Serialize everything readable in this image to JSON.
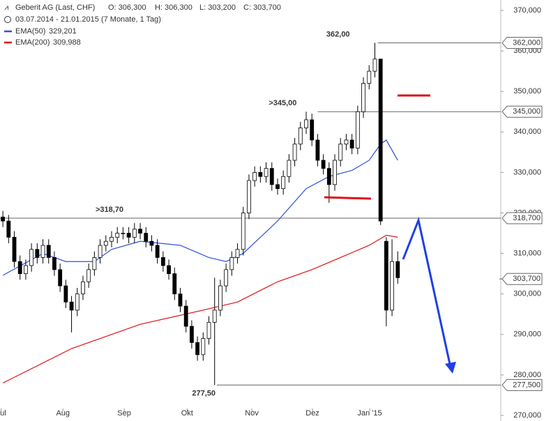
{
  "chart_data": {
    "type": "candlestick",
    "title": "Geberit AG (Last, CHF)",
    "quote": {
      "open": "O: 306,300",
      "high": "H: 306,300",
      "low": "L: 303,200",
      "close": "C: 303,700"
    },
    "subtitle": "03.07.2014 - 21.01.2015 (7 Monate, 1 Tag)",
    "up_color": "#ffffff",
    "down_color": "#000000",
    "candles": [
      [
        319,
        320.5,
        316.5,
        318
      ],
      [
        318,
        319.5,
        312.5,
        314
      ],
      [
        314,
        315.5,
        306.5,
        308
      ],
      [
        308,
        309.5,
        303.5,
        305
      ],
      [
        305,
        308.5,
        303.5,
        307
      ],
      [
        307,
        312.5,
        305.5,
        311
      ],
      [
        311,
        312.5,
        307.5,
        309
      ],
      [
        309,
        313.5,
        307.5,
        312
      ],
      [
        312,
        313.5,
        307.5,
        309
      ],
      [
        309,
        310.5,
        304.5,
        306
      ],
      [
        306,
        307.5,
        300.5,
        302
      ],
      [
        302,
        303.5,
        296.5,
        298
      ],
      [
        298,
        299.5,
        290.5,
        296
      ],
      [
        296,
        301.5,
        294.5,
        300
      ],
      [
        300,
        304.5,
        298.5,
        303
      ],
      [
        303,
        307.5,
        301.5,
        306
      ],
      [
        306,
        310.5,
        304.5,
        309
      ],
      [
        309,
        313.5,
        307.5,
        312
      ],
      [
        312,
        314.5,
        310.5,
        313
      ],
      [
        313,
        315.5,
        311.5,
        314
      ],
      [
        314,
        316.5,
        312.5,
        315
      ],
      [
        315,
        316.5,
        313.5,
        315
      ],
      [
        315,
        316.5,
        312.5,
        314
      ],
      [
        314,
        317.5,
        312.5,
        316
      ],
      [
        316,
        317.5,
        313.5,
        315
      ],
      [
        315,
        316.5,
        311.5,
        313
      ],
      [
        313,
        314.5,
        310.5,
        312
      ],
      [
        312,
        313.5,
        307.5,
        309
      ],
      [
        309,
        310.5,
        305.5,
        307
      ],
      [
        307,
        308.5,
        303.5,
        305
      ],
      [
        305,
        306.5,
        298.5,
        300
      ],
      [
        300,
        301.5,
        295.5,
        297
      ],
      [
        297,
        298.5,
        290.5,
        292
      ],
      [
        292,
        293.5,
        286.5,
        288
      ],
      [
        288,
        289.5,
        283.5,
        285
      ],
      [
        285,
        290.5,
        283.5,
        289
      ],
      [
        289,
        294.5,
        287.5,
        293
      ],
      [
        293,
        304,
        277.5,
        296
      ],
      [
        296,
        303.5,
        294.5,
        302
      ],
      [
        302,
        307.5,
        300.5,
        306
      ],
      [
        306,
        310.5,
        304.5,
        309
      ],
      [
        309,
        312.5,
        307.5,
        311
      ],
      [
        311,
        321.5,
        309.5,
        320
      ],
      [
        320,
        329.5,
        318.5,
        328
      ],
      [
        328,
        331.5,
        326.5,
        330
      ],
      [
        330,
        331.5,
        327.5,
        329
      ],
      [
        329,
        332.5,
        327.5,
        331
      ],
      [
        331,
        332.5,
        325.5,
        327
      ],
      [
        327,
        328.5,
        324.5,
        326
      ],
      [
        326,
        330.5,
        324.5,
        329
      ],
      [
        329,
        334.5,
        327.5,
        333
      ],
      [
        333,
        338.5,
        331.5,
        337
      ],
      [
        337,
        342.5,
        335.5,
        341
      ],
      [
        341,
        345,
        339.5,
        343
      ],
      [
        343,
        344.5,
        336.5,
        338
      ],
      [
        338,
        339.5,
        331.5,
        333
      ],
      [
        333,
        334.5,
        329.5,
        331
      ],
      [
        331,
        332.5,
        322.5,
        327
      ],
      [
        327,
        334.5,
        325.5,
        333
      ],
      [
        333,
        338.5,
        331.5,
        337
      ],
      [
        337,
        339.5,
        335.5,
        338
      ],
      [
        338,
        339.5,
        334.5,
        336
      ],
      [
        336,
        346.5,
        334.5,
        345
      ],
      [
        345,
        353.5,
        343.5,
        352
      ],
      [
        352,
        356.5,
        350.5,
        355
      ],
      [
        355,
        362,
        353.5,
        358
      ],
      [
        358,
        358,
        317,
        318
      ],
      [
        313,
        314,
        292,
        296
      ],
      [
        296,
        313.5,
        294.5,
        308
      ],
      [
        308,
        310.5,
        302.5,
        304
      ]
    ],
    "series": [
      {
        "name": "EMA(50)",
        "last": "329,201",
        "color": "#2b4fe0",
        "x": [
          0,
          7,
          11,
          16,
          19,
          24,
          31,
          36,
          39,
          42,
          48,
          53,
          57,
          61,
          64,
          66,
          67,
          69
        ],
        "values": [
          304.6,
          310,
          308,
          308,
          311,
          313,
          312,
          309,
          308,
          310,
          318,
          326,
          329,
          330.5,
          333,
          337,
          338,
          333
        ]
      },
      {
        "name": "EMA(200)",
        "last": "309,988",
        "color": "#e01010",
        "x": [
          0,
          12,
          24,
          35,
          41,
          48,
          54,
          59,
          64,
          67,
          69
        ],
        "values": [
          278,
          286.5,
          292.5,
          296,
          298,
          303,
          306,
          309,
          312,
          314.5,
          314
        ]
      }
    ],
    "xlim": [
      -0.5,
      87
    ],
    "xticks": [
      {
        "value": -0.3,
        "label": "Jul"
      },
      {
        "value": 10.5,
        "label": "Aug"
      },
      {
        "value": 21.2,
        "label": "Sep"
      },
      {
        "value": 32.2,
        "label": "Okt"
      },
      {
        "value": 43.5,
        "label": "Nov"
      },
      {
        "value": 54.1,
        "label": "Dez"
      },
      {
        "value": 64.1,
        "label": "Jan '15"
      }
    ],
    "ylim": [
      270,
      370
    ],
    "yticks": [
      {
        "value": 270,
        "label": "270,000"
      },
      {
        "value": 280,
        "label": "280,000"
      },
      {
        "value": 290,
        "label": "290,000"
      },
      {
        "value": 300,
        "label": "300,000"
      },
      {
        "value": 310,
        "label": "310,000"
      },
      {
        "value": 320,
        "label": "320,000"
      },
      {
        "value": 330,
        "label": "330,000"
      },
      {
        "value": 340,
        "label": "340,000"
      },
      {
        "value": 350,
        "label": "350,000"
      },
      {
        "value": 360,
        "label": "360,000"
      },
      {
        "value": 370,
        "label": "370,000"
      }
    ],
    "levels": [
      {
        "value": 362,
        "label": "362,000",
        "from": 65.5,
        "note": "362,00",
        "note_color": "#777777"
      },
      {
        "value": 345,
        "label": "345,000",
        "from": 55,
        "note": ">345,00",
        "note_color": "#dd0000"
      },
      {
        "value": 318.7,
        "label": "318,700",
        "from": -0.5,
        "note": ">318,70",
        "note_color": "#dd0000"
      },
      {
        "value": 277.5,
        "label": "277,500",
        "from": 37.4,
        "note": "277,50",
        "note_color": "#777777"
      }
    ],
    "last_price": {
      "value": 303.7,
      "label": "303,700"
    }
  }
}
